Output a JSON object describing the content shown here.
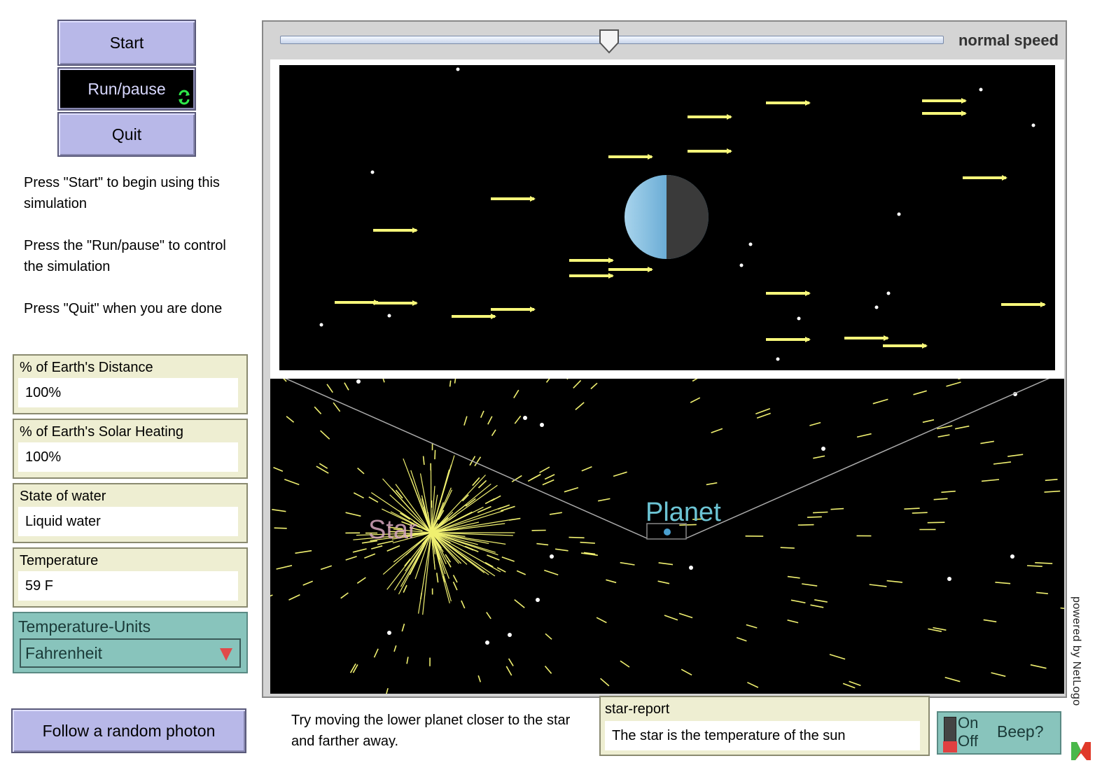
{
  "buttons": {
    "start": "Start",
    "run_pause": "Run/pause",
    "quit": "Quit",
    "follow": "Follow a random photon"
  },
  "instructions": {
    "line1": "Press \"Start\" to begin using this simulation",
    "line2": "Press the \"Run/pause\" to control the simulation",
    "line3": "Press \"Quit\" when you are done"
  },
  "monitors": [
    {
      "label": "% of Earth's Distance",
      "value": "100%"
    },
    {
      "label": "% of Earth's Solar Heating",
      "value": "100%"
    },
    {
      "label": "State of water",
      "value": "Liquid water"
    },
    {
      "label": "Temperature",
      "value": "59 F"
    }
  ],
  "chooser": {
    "label": "Temperature-Units",
    "value": "Fahrenheit"
  },
  "speed": {
    "label": "normal speed",
    "fraction": 0.5
  },
  "view": {
    "star_label": "Star",
    "planet_label": "Planet"
  },
  "hint": "Try moving the lower planet closer to the star and farther away.",
  "report": {
    "label": "star-report",
    "value": "The star is the temperature of the sun"
  },
  "switch": {
    "on": "On",
    "off": "Off",
    "label": "Beep?"
  },
  "powered_by": "powered by NetLogo",
  "colors": {
    "button": "#b8b8e8",
    "monitor": "#eeeed2",
    "chooser": "#88c4bc",
    "photon": "#f0f070",
    "planet": "#4aa0d0"
  }
}
